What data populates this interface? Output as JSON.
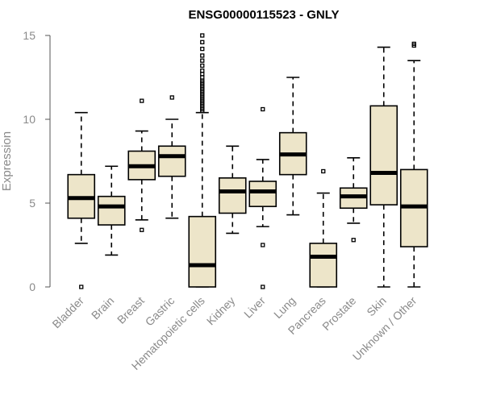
{
  "chart_data": {
    "type": "boxplot",
    "title": "ENSG00000115523 - GNLY",
    "xlabel": "",
    "ylabel": "Expression",
    "ylim": [
      0,
      15
    ],
    "yticks": [
      0,
      5,
      10,
      15
    ],
    "box_fill": "#ede5c9",
    "categories": [
      "Bladder",
      "Brain",
      "Breast",
      "Gastric",
      "Hematopoietic cells",
      "Kidney",
      "Liver",
      "Lung",
      "Pancreas",
      "Prostate",
      "Skin",
      "Unknown / Other"
    ],
    "boxes": [
      {
        "name": "Bladder",
        "min": 2.6,
        "q1": 4.1,
        "median": 5.3,
        "q3": 6.7,
        "max": 10.4,
        "outliers": [
          0.0
        ]
      },
      {
        "name": "Brain",
        "min": 1.9,
        "q1": 3.7,
        "median": 4.8,
        "q3": 5.4,
        "max": 7.2,
        "outliers": []
      },
      {
        "name": "Breast",
        "min": 4.0,
        "q1": 6.4,
        "median": 7.2,
        "q3": 8.1,
        "max": 9.3,
        "outliers": [
          11.1,
          3.4
        ]
      },
      {
        "name": "Gastric",
        "min": 4.1,
        "q1": 6.6,
        "median": 7.8,
        "q3": 8.4,
        "max": 10.0,
        "outliers": [
          11.3
        ]
      },
      {
        "name": "Hematopoietic cells",
        "min": 0.0,
        "q1": 0.0,
        "median": 1.3,
        "q3": 4.2,
        "max": 10.4,
        "outliers": [
          10.5,
          10.6,
          10.7,
          10.8,
          10.9,
          11.0,
          11.1,
          11.2,
          11.3,
          11.4,
          11.5,
          11.6,
          11.7,
          11.8,
          11.9,
          12.0,
          12.1,
          12.2,
          12.3,
          12.5,
          12.7,
          12.9,
          13.2,
          13.5,
          13.8,
          14.2,
          14.6,
          15.0
        ]
      },
      {
        "name": "Kidney",
        "min": 3.2,
        "q1": 4.4,
        "median": 5.7,
        "q3": 6.5,
        "max": 8.4,
        "outliers": []
      },
      {
        "name": "Liver",
        "min": 3.6,
        "q1": 4.8,
        "median": 5.7,
        "q3": 6.3,
        "max": 7.6,
        "outliers": [
          10.6,
          2.5,
          0.0
        ]
      },
      {
        "name": "Lung",
        "min": 4.3,
        "q1": 6.7,
        "median": 7.9,
        "q3": 9.2,
        "max": 12.5,
        "outliers": []
      },
      {
        "name": "Pancreas",
        "min": 0.0,
        "q1": 0.0,
        "median": 1.8,
        "q3": 2.6,
        "max": 5.6,
        "outliers": [
          6.9
        ]
      },
      {
        "name": "Prostate",
        "min": 3.8,
        "q1": 4.7,
        "median": 5.4,
        "q3": 5.9,
        "max": 7.7,
        "outliers": [
          2.8
        ]
      },
      {
        "name": "Skin",
        "min": 0.0,
        "q1": 4.9,
        "median": 6.8,
        "q3": 10.8,
        "max": 14.3,
        "outliers": []
      },
      {
        "name": "Unknown / Other",
        "min": 0.0,
        "q1": 2.4,
        "median": 4.8,
        "q3": 7.0,
        "max": 13.5,
        "outliers": [
          14.4,
          14.5
        ]
      }
    ]
  }
}
